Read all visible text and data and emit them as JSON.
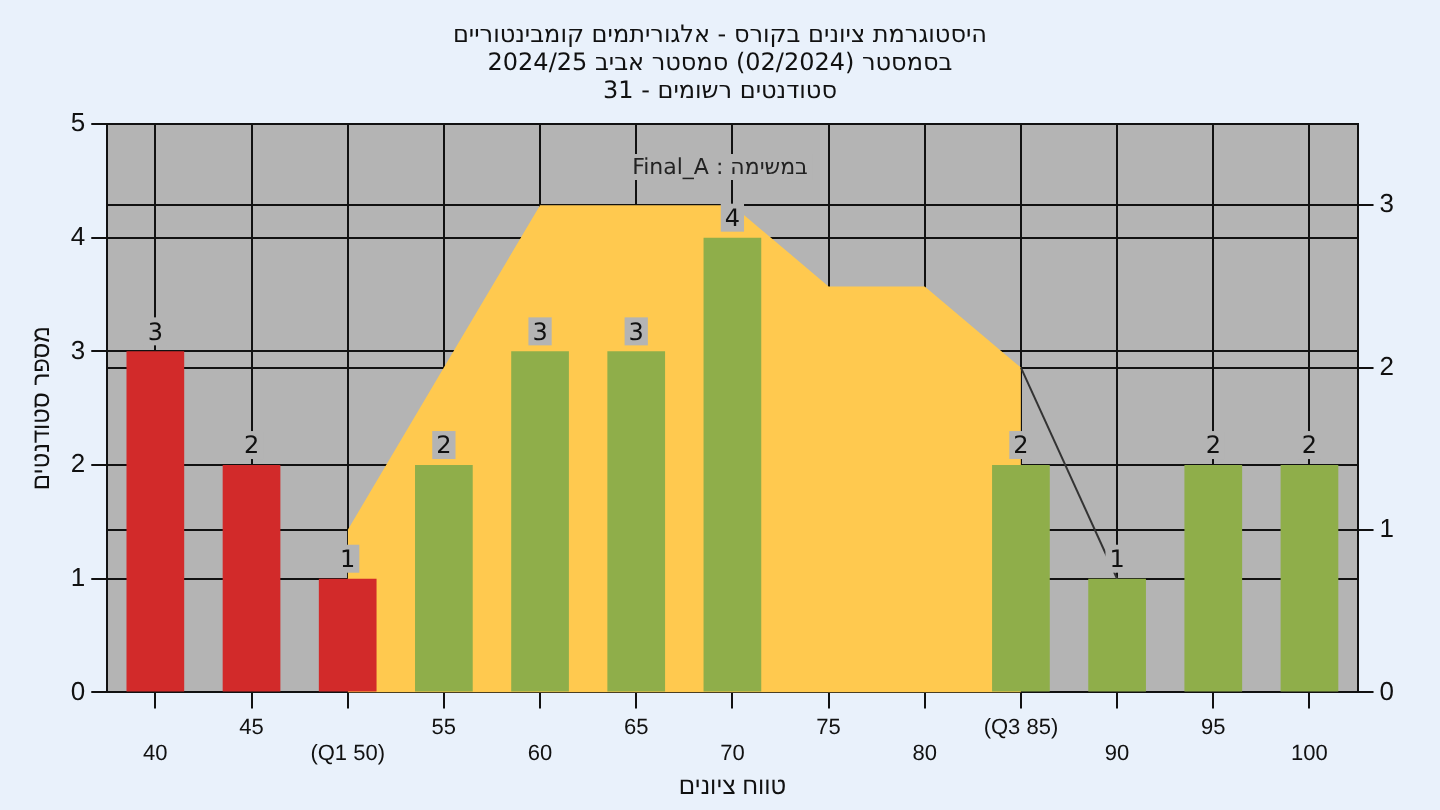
{
  "chart_data": {
    "type": "bar",
    "title": "היסטוגרמת ציונים בקורס - אלגוריתמים קומבינטוריים",
    "subtitle": "בסמסטר  (02/2024)  סמסטר אביב 2024/25\nסטודנטים רשומים - 31",
    "xlabel": "טווח ציונים",
    "ylabel": "מספר סטודנטים",
    "annotations": [
      "במשימה : Final_A"
    ],
    "categories": [
      "40",
      "45",
      "(Q1 50)",
      "55",
      "60",
      "65",
      "70",
      "75",
      "80",
      "(Q3 85)",
      "90",
      "95",
      "100"
    ],
    "series": [
      {
        "values": [
          3,
          2,
          1,
          2,
          3,
          3,
          4,
          0,
          0,
          2,
          1,
          2,
          2
        ],
        "colors": [
          "#d22a2a",
          "#d22a2a",
          "#d22a2a",
          "#8fae4a",
          "#8fae4a",
          "#8fae4a",
          "#8fae4a",
          "#8fae4a",
          "#8fae4a",
          "#8fae4a",
          "#8fae4a",
          "#8fae4a",
          "#8fae4a"
        ],
        "value_labels": [
          "3",
          "2",
          "1",
          "2",
          "3",
          "3",
          "4",
          null,
          null,
          "2",
          "1",
          "2",
          "2"
        ]
      },
      {
        "type": "area",
        "axis": "y2",
        "color": "#ffc94f",
        "values": [
          null,
          null,
          1,
          2,
          3,
          3,
          3,
          2.5,
          2.5,
          2,
          null,
          null,
          null
        ]
      },
      {
        "type": "line",
        "axis": "y2",
        "color": "#333333",
        "values": [
          null,
          null,
          null,
          null,
          null,
          null,
          null,
          null,
          null,
          2,
          0.7,
          null,
          null
        ]
      }
    ],
    "ylim": [
      0,
      5
    ],
    "yticks": [
      0,
      1,
      2,
      3,
      4,
      5
    ],
    "y2lim": [
      0,
      3.5
    ],
    "y2ticks": [
      0,
      1,
      2,
      3
    ],
    "grid": true,
    "legend": false
  }
}
